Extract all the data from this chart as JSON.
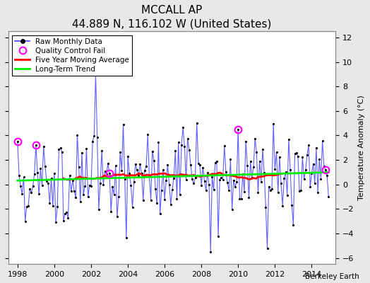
{
  "title": "MCCALL AP",
  "subtitle": "44.889 N, 116.102 W (United States)",
  "ylabel": "Temperature Anomaly (°C)",
  "xlabel_credit": "Berkeley Earth",
  "xlim": [
    1997.5,
    2015.3
  ],
  "ylim": [
    -6.5,
    12.5
  ],
  "yticks": [
    -6,
    -4,
    -2,
    0,
    2,
    4,
    6,
    8,
    10,
    12
  ],
  "xticks": [
    1998,
    2000,
    2002,
    2004,
    2006,
    2008,
    2010,
    2012,
    2014
  ],
  "raw_color": "#4444FF",
  "moving_avg_color": "#FF0000",
  "trend_color": "#00EE00",
  "qc_fail_color": "#FF00FF",
  "bg_color": "#E8E8E8",
  "plot_bg_color": "#FFFFFF",
  "grid_color": "#FFFFFF",
  "title_fontsize": 11,
  "subtitle_fontsize": 9,
  "legend_fontsize": 7.5,
  "tick_fontsize": 8,
  "ylabel_fontsize": 8
}
